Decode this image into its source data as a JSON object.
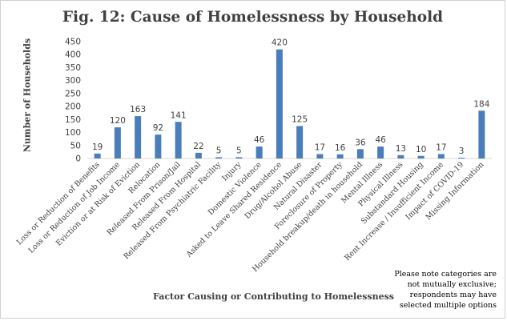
{
  "chart_data": {
    "type": "bar",
    "title": "Fig. 12: Cause of Homelessness by Household",
    "xlabel": "Factor Causing or Contributing to Homelessness",
    "ylabel": "Number of Households",
    "ylim": [
      0,
      450
    ],
    "yticks": [
      0,
      50,
      100,
      150,
      200,
      250,
      300,
      350,
      400,
      450
    ],
    "bar_color": "#4a7ebb",
    "categories": [
      "Loss or Reduction of Benefits",
      "Loss or Reduction of Job Income",
      "Eviction or at Risk of Eviction",
      "Relocation",
      "Released From Prison/Jail",
      "Released From Hospital",
      "Released From Psychiatric Facility",
      "Injury",
      "Domestic Violence",
      "Asked to Leave Shared Residence",
      "Drug/Alcohol Abuse",
      "Natural Disaster",
      "Foreclosure of Property",
      "Household breakup/death in household",
      "Mental Illness",
      "Physical Illness",
      "Substandard Housing",
      "Rent Increase / Insufficient Income",
      "Impact of COVID-19",
      "Missing Information"
    ],
    "values": [
      19,
      120,
      163,
      92,
      141,
      22,
      5,
      5,
      46,
      420,
      125,
      17,
      16,
      36,
      46,
      13,
      10,
      17,
      3,
      184
    ],
    "note": "Please note categories are not mutually exclusive; respondents may have selected multiple options"
  }
}
